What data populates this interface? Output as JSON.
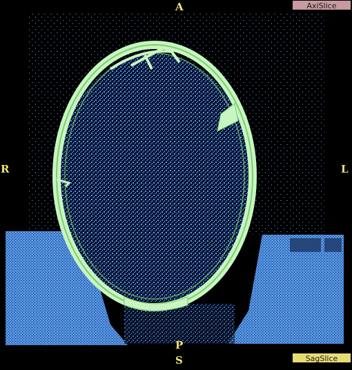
{
  "orientation": {
    "anterior": "A",
    "right": "R",
    "left": "L",
    "posterior": "P",
    "superior": "S"
  },
  "buttons": {
    "axial": "AxiSlice",
    "sagittal": "SagSlice"
  },
  "colors": {
    "background": "#000000",
    "tissue": "#5b97e6",
    "bone": "#c8f5c2",
    "bone_edge": "#7ad06a",
    "label": "#f2e27a",
    "axial_button": "#c79aa0",
    "sagittal_button": "#e6dc74"
  }
}
